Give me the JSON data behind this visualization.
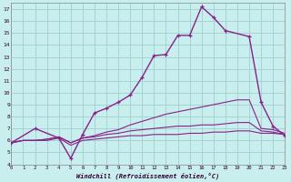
{
  "xlabel": "Windchill (Refroidissement éolien,°C)",
  "bg_color": "#c8eeee",
  "grid_color": "#a0d0d0",
  "line_color": "#882288",
  "xlim": [
    0,
    23
  ],
  "ylim": [
    4,
    17.5
  ],
  "xticks": [
    0,
    1,
    2,
    3,
    4,
    5,
    6,
    7,
    8,
    9,
    10,
    11,
    12,
    13,
    14,
    15,
    16,
    17,
    18,
    19,
    20,
    21,
    22,
    23
  ],
  "yticks": [
    4,
    5,
    6,
    7,
    8,
    9,
    10,
    11,
    12,
    13,
    14,
    15,
    16,
    17
  ],
  "series": [
    {
      "x": [
        0,
        1,
        2,
        3,
        4,
        5,
        6,
        7,
        8,
        9,
        10,
        11,
        12,
        13,
        14,
        15,
        16,
        17,
        18,
        19,
        20,
        21,
        22,
        23
      ],
      "y": [
        5.8,
        6.0,
        6.0,
        6.0,
        6.2,
        5.6,
        6.0,
        6.1,
        6.2,
        6.3,
        6.4,
        6.4,
        6.5,
        6.5,
        6.5,
        6.6,
        6.6,
        6.7,
        6.7,
        6.8,
        6.8,
        6.6,
        6.6,
        6.5
      ],
      "marker": false,
      "lw": 0.8
    },
    {
      "x": [
        0,
        1,
        2,
        3,
        4,
        5,
        6,
        7,
        8,
        9,
        10,
        11,
        12,
        13,
        14,
        15,
        16,
        17,
        18,
        19,
        20,
        21,
        22,
        23
      ],
      "y": [
        5.8,
        6.0,
        6.0,
        6.1,
        6.3,
        5.8,
        6.2,
        6.3,
        6.5,
        6.6,
        6.8,
        6.9,
        7.0,
        7.1,
        7.2,
        7.2,
        7.3,
        7.3,
        7.4,
        7.5,
        7.5,
        6.8,
        6.7,
        6.5
      ],
      "marker": false,
      "lw": 0.8
    },
    {
      "x": [
        0,
        1,
        2,
        3,
        4,
        5,
        6,
        7,
        8,
        9,
        10,
        11,
        12,
        13,
        14,
        15,
        16,
        17,
        18,
        19,
        20,
        21,
        22,
        23
      ],
      "y": [
        5.8,
        6.0,
        6.0,
        6.1,
        6.3,
        5.8,
        6.2,
        6.4,
        6.7,
        6.9,
        7.3,
        7.6,
        7.9,
        8.2,
        8.4,
        8.6,
        8.8,
        9.0,
        9.2,
        9.4,
        9.4,
        7.0,
        6.9,
        6.6
      ],
      "marker": false,
      "lw": 0.8
    },
    {
      "x": [
        0,
        2,
        4,
        5,
        6,
        7,
        8,
        9,
        10,
        11,
        12,
        13,
        14,
        15,
        16,
        17,
        18,
        20,
        21,
        22,
        23
      ],
      "y": [
        5.8,
        7.0,
        6.2,
        4.5,
        6.5,
        8.3,
        8.7,
        9.2,
        9.8,
        11.3,
        13.1,
        13.2,
        14.8,
        14.8,
        17.2,
        16.3,
        15.2,
        14.7,
        9.2,
        7.2,
        6.4
      ],
      "marker": true,
      "lw": 1.0
    }
  ]
}
